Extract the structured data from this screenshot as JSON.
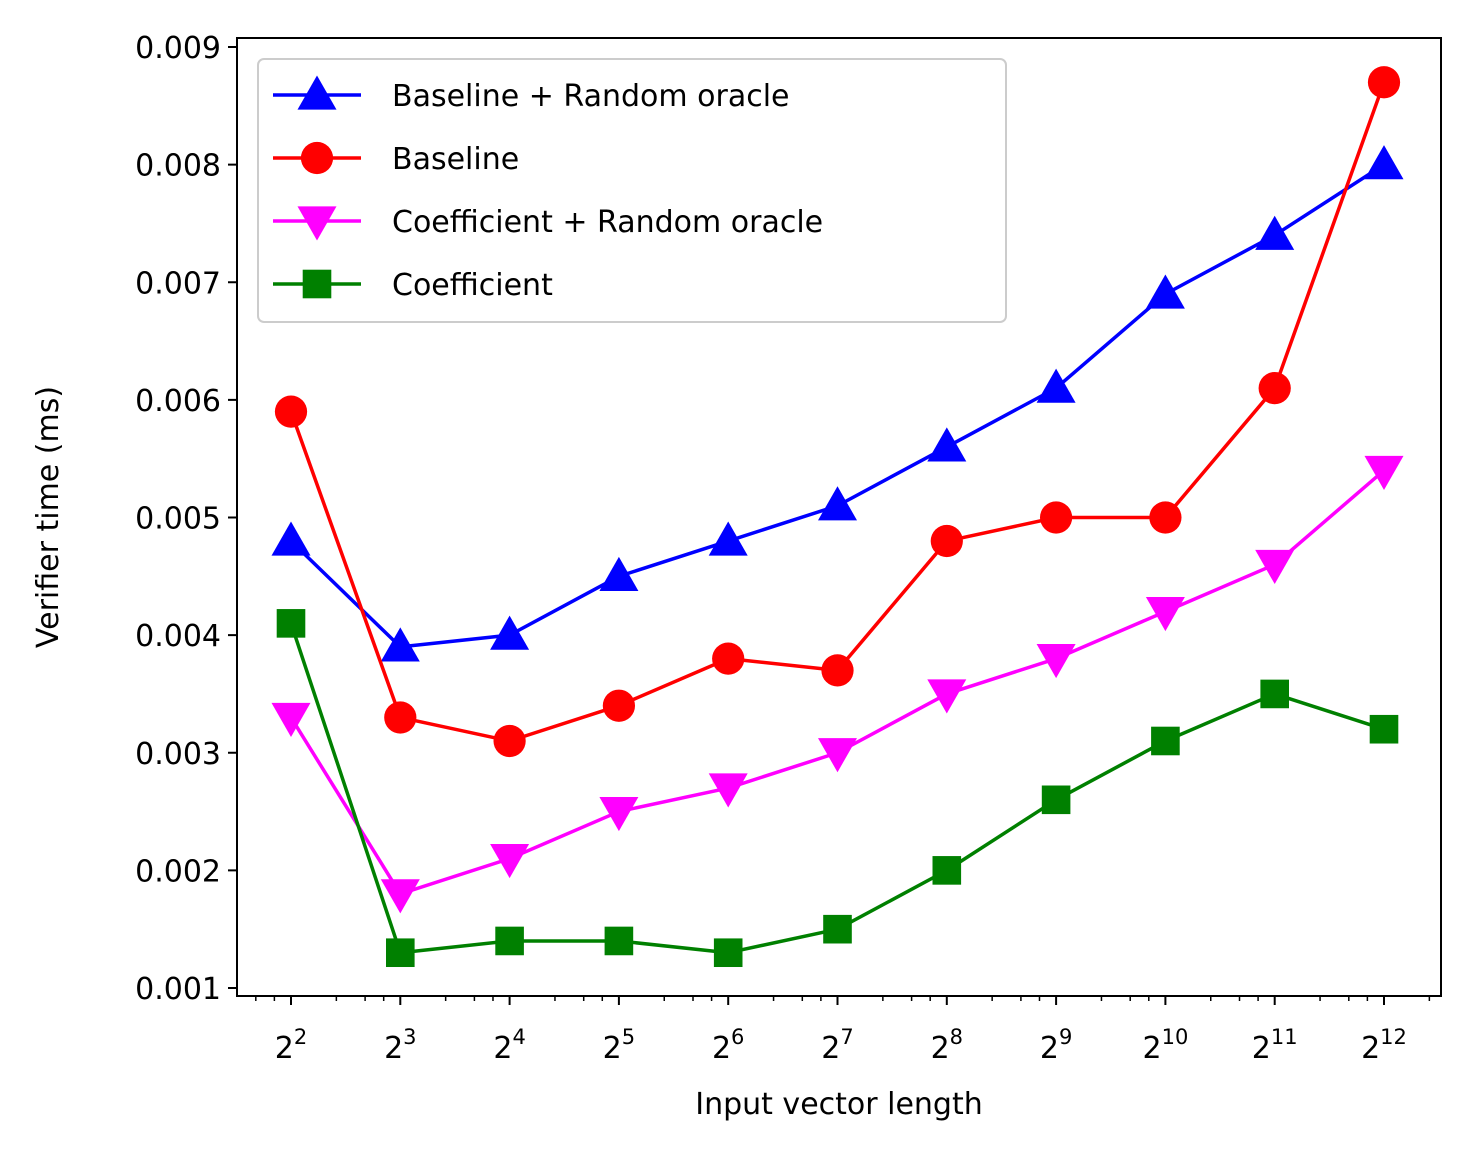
{
  "chart_data": {
    "type": "line",
    "xlabel": "Input vector length",
    "ylabel": "Verifier time (ms)",
    "x_scale": "log2",
    "x_tick_labels": [
      {
        "base": "2",
        "exp": "2"
      },
      {
        "base": "2",
        "exp": "3"
      },
      {
        "base": "2",
        "exp": "4"
      },
      {
        "base": "2",
        "exp": "5"
      },
      {
        "base": "2",
        "exp": "6"
      },
      {
        "base": "2",
        "exp": "7"
      },
      {
        "base": "2",
        "exp": "8"
      },
      {
        "base": "2",
        "exp": "9"
      },
      {
        "base": "2",
        "exp": "10"
      },
      {
        "base": "2",
        "exp": "11"
      },
      {
        "base": "2",
        "exp": "12"
      }
    ],
    "x": [
      4,
      8,
      16,
      32,
      64,
      128,
      256,
      512,
      1024,
      2048,
      4096
    ],
    "y_tick_labels": [
      "0.001",
      "0.002",
      "0.003",
      "0.004",
      "0.005",
      "0.006",
      "0.007",
      "0.008",
      "0.009"
    ],
    "ylim": [
      0.001,
      0.009
    ],
    "legend_position": "upper-left",
    "grid": false,
    "series": [
      {
        "name": "Baseline + Random oracle",
        "color": "#0000ff",
        "marker": "triangle-up",
        "values": [
          0.0048,
          0.0039,
          0.004,
          0.0045,
          0.0048,
          0.0051,
          0.0056,
          0.0061,
          0.0069,
          0.0074,
          0.008
        ]
      },
      {
        "name": "Baseline",
        "color": "#ff0000",
        "marker": "circle",
        "values": [
          0.0059,
          0.0033,
          0.0031,
          0.0034,
          0.0038,
          0.0037,
          0.0048,
          0.005,
          0.005,
          0.0061,
          0.0087
        ]
      },
      {
        "name": "Coefficient + Random oracle",
        "color": "#ff00ff",
        "marker": "triangle-down",
        "values": [
          0.0033,
          0.0018,
          0.0021,
          0.0025,
          0.0027,
          0.003,
          0.0035,
          0.0038,
          0.0042,
          0.0046,
          0.0054
        ]
      },
      {
        "name": "Coefficient",
        "color": "#008000",
        "marker": "square",
        "values": [
          0.0041,
          0.0013,
          0.0014,
          0.0014,
          0.0013,
          0.0015,
          0.002,
          0.0026,
          0.0031,
          0.0035,
          0.0032
        ]
      }
    ]
  }
}
